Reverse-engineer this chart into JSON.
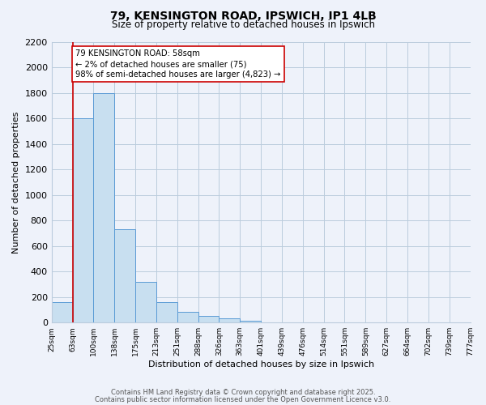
{
  "title": "79, KENSINGTON ROAD, IPSWICH, IP1 4LB",
  "subtitle": "Size of property relative to detached houses in Ipswich",
  "xlabel": "Distribution of detached houses by size in Ipswich",
  "ylabel": "Number of detached properties",
  "bar_values": [
    160,
    1600,
    1800,
    730,
    320,
    160,
    85,
    50,
    30,
    15,
    0,
    0,
    0,
    0,
    0,
    0,
    0,
    0,
    0,
    0
  ],
  "bar_labels": [
    "25sqm",
    "63sqm",
    "100sqm",
    "138sqm",
    "175sqm",
    "213sqm",
    "251sqm",
    "288sqm",
    "326sqm",
    "363sqm",
    "401sqm",
    "439sqm",
    "476sqm",
    "514sqm",
    "551sqm",
    "589sqm",
    "627sqm",
    "664sqm",
    "702sqm",
    "739sqm",
    "777sqm"
  ],
  "bar_color": "#c8dff0",
  "bar_edge_color": "#5b9bd5",
  "grid_color": "#bbccdd",
  "background_color": "#eef2fa",
  "ylim": [
    0,
    2200
  ],
  "yticks": [
    0,
    200,
    400,
    600,
    800,
    1000,
    1200,
    1400,
    1600,
    1800,
    2000,
    2200
  ],
  "property_line_x": 1,
  "property_line_color": "#cc0000",
  "annotation_text": "79 KENSINGTON ROAD: 58sqm\n← 2% of detached houses are smaller (75)\n98% of semi-detached houses are larger (4,823) →",
  "annotation_box_edge_color": "#cc0000",
  "footer_line1": "Contains HM Land Registry data © Crown copyright and database right 2025.",
  "footer_line2": "Contains public sector information licensed under the Open Government Licence v3.0.",
  "n_bars": 20,
  "title_fontsize": 10,
  "subtitle_fontsize": 8.5
}
